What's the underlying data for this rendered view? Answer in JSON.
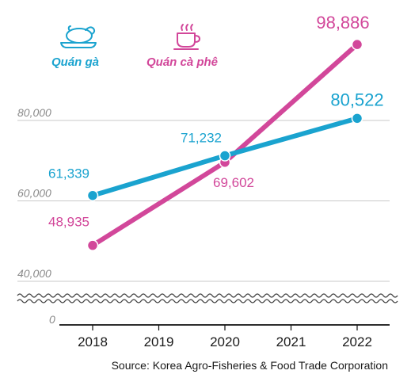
{
  "chart_data": {
    "type": "line",
    "title": "",
    "xlabel": "",
    "ylabel": "",
    "categories": [
      "2018",
      "2019",
      "2020",
      "2021",
      "2022"
    ],
    "y_tick_labels": [
      "80,000",
      "60,000",
      "40,000",
      "0"
    ],
    "ylim": [
      40000,
      80000
    ],
    "y_axis_break": true,
    "grid": true,
    "legend_position": "top-left",
    "series": [
      {
        "name": "Quán gà",
        "color": "#1aa3cf",
        "icon": "roast-chicken-icon",
        "points": [
          {
            "x": "2018",
            "y": 61339,
            "label": "61,339"
          },
          {
            "x": "2020",
            "y": 71232,
            "label": "71,232"
          },
          {
            "x": "2022",
            "y": 80522,
            "label": "80,522"
          }
        ]
      },
      {
        "name": "Quán cà phê",
        "color": "#d2479a",
        "icon": "coffee-cup-icon",
        "points": [
          {
            "x": "2018",
            "y": 48935,
            "label": "48,935"
          },
          {
            "x": "2020",
            "y": 69602,
            "label": "69,602"
          },
          {
            "x": "2022",
            "y": 98886,
            "label": "98,886"
          }
        ]
      }
    ],
    "source": "Source: Korea Agro-Fisheries & Food Trade Corporation"
  }
}
